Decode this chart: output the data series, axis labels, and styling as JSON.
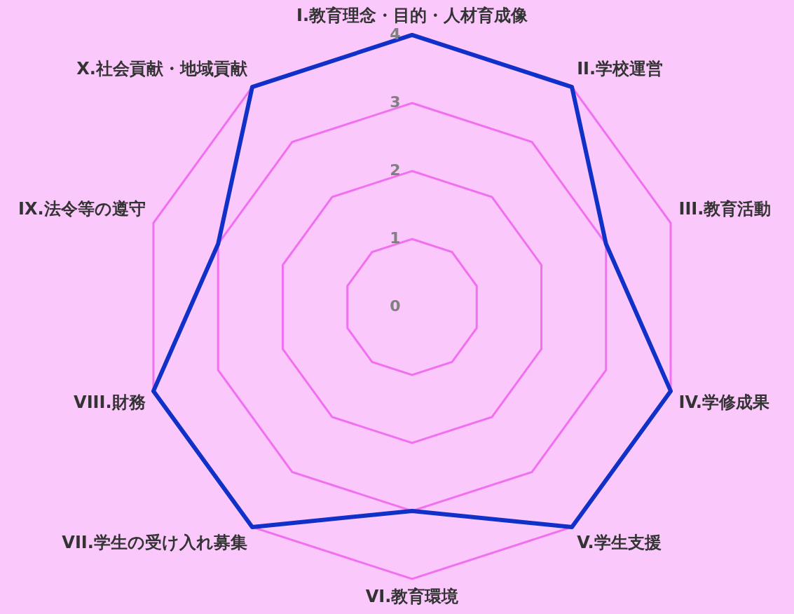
{
  "chart_data": {
    "type": "radar",
    "categories": [
      "I.教育理念・目的・人材育成像",
      "II.学校運営",
      "III.教育活動",
      "IV.学修成果",
      "V.学生支援",
      "VI.教育環境",
      "VII.学生の受け入れ募集",
      "VIII.財務",
      "IX.法令等の遵守",
      "X.社会貢献・地域貢献"
    ],
    "series": [
      {
        "color": "#1030c8",
        "values": [
          4,
          4,
          3,
          4,
          4,
          3,
          4,
          4,
          3,
          4
        ]
      }
    ],
    "ylim": [
      0,
      4
    ],
    "yticks": [
      0,
      1,
      2,
      3,
      4
    ],
    "grid": true,
    "legend": false,
    "marker": "none",
    "line_style": "solid"
  }
}
